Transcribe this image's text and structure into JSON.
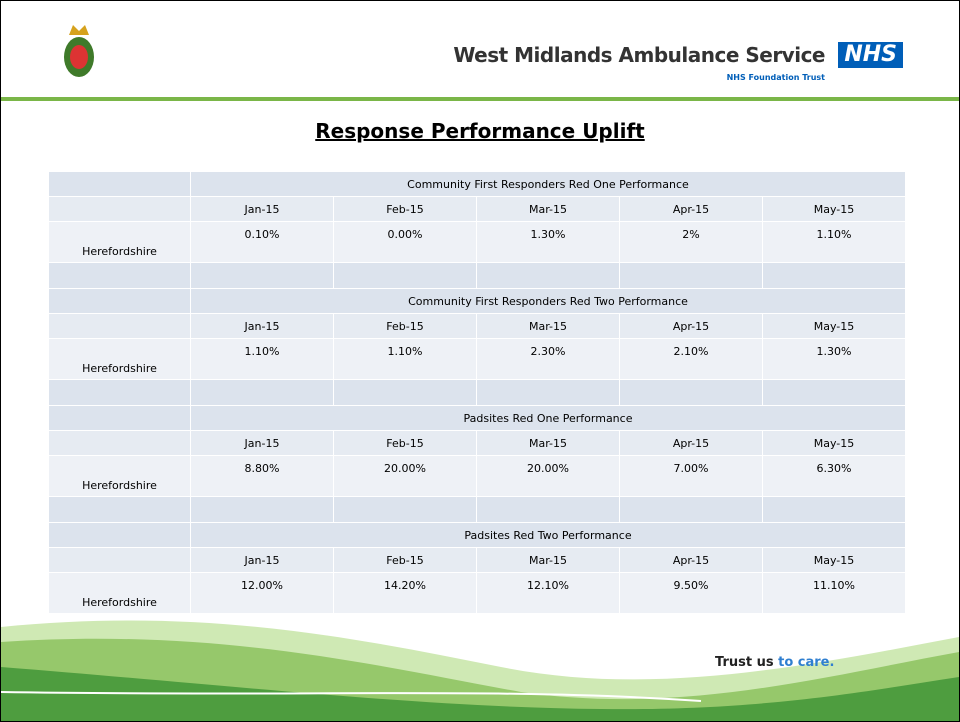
{
  "header": {
    "organisation": "West Midlands Ambulance Service",
    "badge": "NHS",
    "subtitle": "NHS Foundation Trust"
  },
  "title": "Response Performance Uplift",
  "table": {
    "sections": [
      {
        "title": "Community First Responders Red One Performance",
        "months": [
          "Jan-15",
          "Feb-15",
          "Mar-15",
          "Apr-15",
          "May-15"
        ],
        "row_label": "Herefordshire",
        "values": [
          "0.10%",
          "0.00%",
          "1.30%",
          "2%",
          "1.10%"
        ]
      },
      {
        "title": "Community First Responders Red Two Performance",
        "months": [
          "Jan-15",
          "Feb-15",
          "Mar-15",
          "Apr-15",
          "May-15"
        ],
        "row_label": "Herefordshire",
        "values": [
          "1.10%",
          "1.10%",
          "2.30%",
          "2.10%",
          "1.30%"
        ]
      },
      {
        "title": "Padsites Red One Performance",
        "months": [
          "Jan-15",
          "Feb-15",
          "Mar-15",
          "Apr-15",
          "May-15"
        ],
        "row_label": "Herefordshire",
        "values": [
          "8.80%",
          "20.00%",
          "20.00%",
          "7.00%",
          "6.30%"
        ]
      },
      {
        "title": "Padsites Red Two Performance",
        "months": [
          "Jan-15",
          "Feb-15",
          "Mar-15",
          "Apr-15",
          "May-15"
        ],
        "row_label": "Herefordshire",
        "values": [
          "12.00%",
          "14.20%",
          "12.10%",
          "9.50%",
          "11.10%"
        ]
      }
    ]
  },
  "footer": {
    "slogan_start": "Trust us",
    "slogan_end": "to care."
  }
}
